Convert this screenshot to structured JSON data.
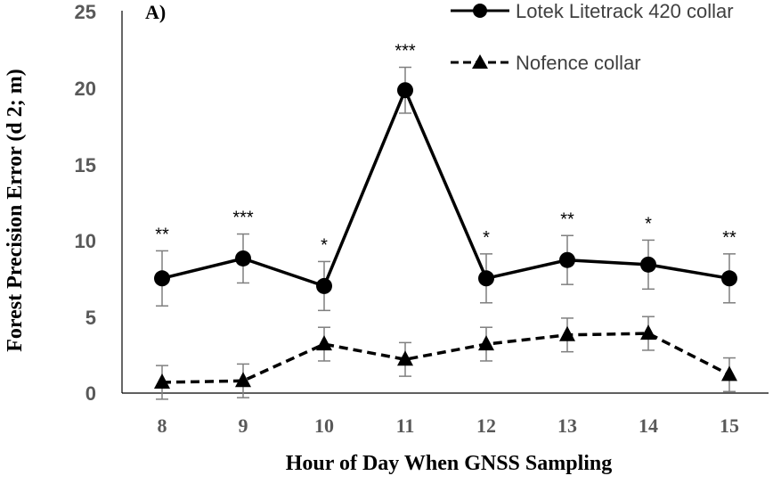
{
  "chart_data": {
    "type": "line",
    "panel_label": "A)",
    "xlabel": "Hour of Day When GNSS Sampling",
    "ylabel": "Forest Precision Error (d 2; m)",
    "categories": [
      "8",
      "9",
      "10",
      "11",
      "12",
      "13",
      "14",
      "15"
    ],
    "yticks": [
      "0",
      "5",
      "10",
      "15",
      "20",
      "25"
    ],
    "ylim": [
      0,
      25
    ],
    "legend_position": "top-right",
    "significance": [
      "**",
      "***",
      "*",
      "***",
      "*",
      "**",
      "*",
      "**"
    ],
    "series": [
      {
        "name": "Lotek Litetrack 420 collar",
        "marker": "circle",
        "line_style": "solid",
        "values": [
          7.5,
          8.8,
          7.0,
          19.8,
          7.5,
          8.7,
          8.4,
          7.5
        ],
        "err": [
          1.8,
          1.6,
          1.6,
          1.5,
          1.6,
          1.6,
          1.6,
          1.6
        ]
      },
      {
        "name": "Nofence collar",
        "marker": "triangle",
        "line_style": "dashed",
        "values": [
          0.7,
          0.8,
          3.2,
          2.2,
          3.2,
          3.8,
          3.9,
          1.2
        ],
        "err": [
          1.1,
          1.1,
          1.1,
          1.1,
          1.1,
          1.1,
          1.1,
          1.1
        ]
      }
    ]
  }
}
